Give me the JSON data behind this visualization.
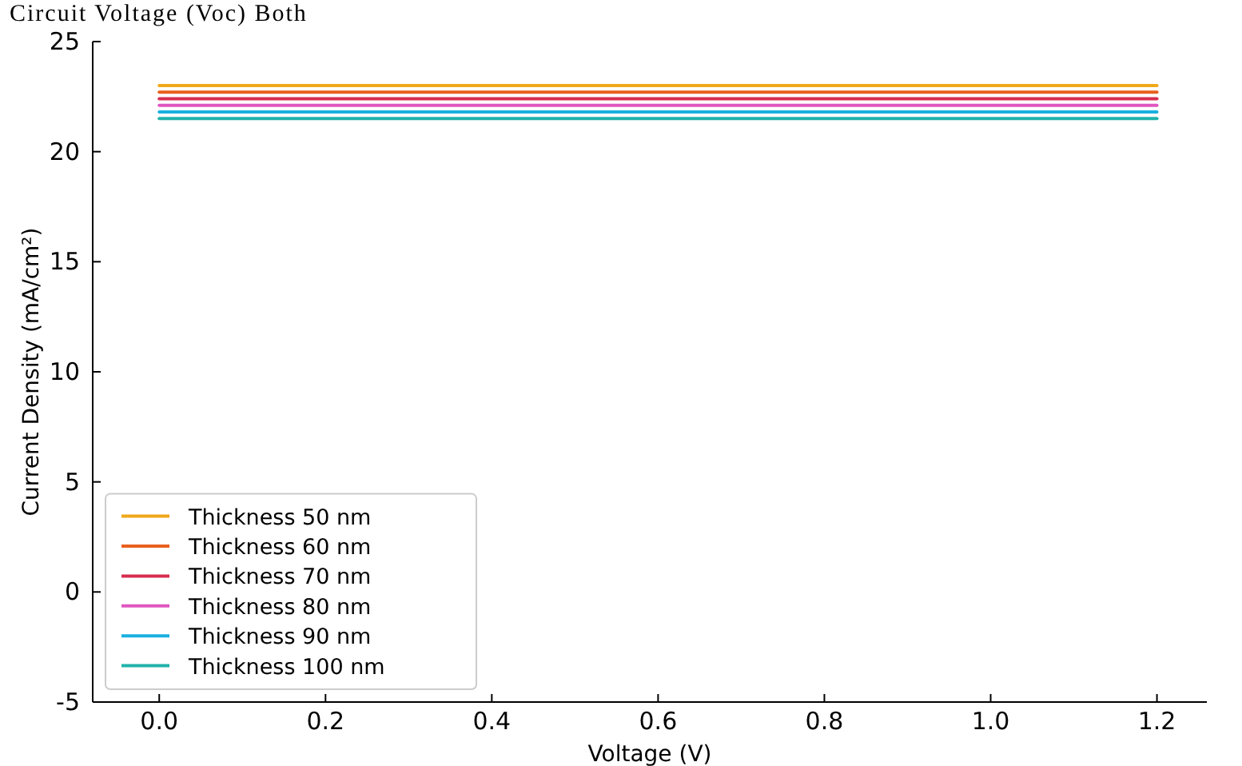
{
  "chart_data": {
    "type": "line",
    "title": "Circuit Voltage (Voc) Both",
    "xlabel": "Voltage (V)",
    "ylabel": "Current Density (mA/cm²)",
    "x": [
      0,
      1.2
    ],
    "xlim": [
      -0.08,
      1.26
    ],
    "xticks": [
      {
        "value": 0,
        "label": "0.0"
      },
      {
        "value": 0.2,
        "label": "0.2"
      },
      {
        "value": 0.4,
        "label": "0.4"
      },
      {
        "value": 0.6,
        "label": "0.6"
      },
      {
        "value": 0.8,
        "label": "0.8"
      },
      {
        "value": 1,
        "label": "1.0"
      },
      {
        "value": 1.2,
        "label": "1.2"
      }
    ],
    "ylim": [
      -5,
      25
    ],
    "yticks": [
      -5,
      0,
      5,
      10,
      15,
      20,
      25
    ],
    "series": [
      {
        "name": "Thickness 50 nm",
        "color": "#f0a818",
        "values": [
          23,
          23
        ]
      },
      {
        "name": "Thickness 60 nm",
        "color": "#e8601c",
        "values": [
          22.7,
          22.7
        ]
      },
      {
        "name": "Thickness 70 nm",
        "color": "#d62d4e",
        "values": [
          22.4,
          22.4
        ]
      },
      {
        "name": "Thickness 80 nm",
        "color": "#e056c0",
        "values": [
          22.1,
          22.1
        ]
      },
      {
        "name": "Thickness 90 nm",
        "color": "#1ab0e0",
        "values": [
          21.8,
          21.8
        ]
      },
      {
        "name": "Thickness 100 nm",
        "color": "#20b2aa",
        "values": [
          21.5,
          21.5
        ]
      }
    ],
    "legend": "bottom left",
    "grid": false,
    "marker": "none",
    "line_style": "solid"
  }
}
